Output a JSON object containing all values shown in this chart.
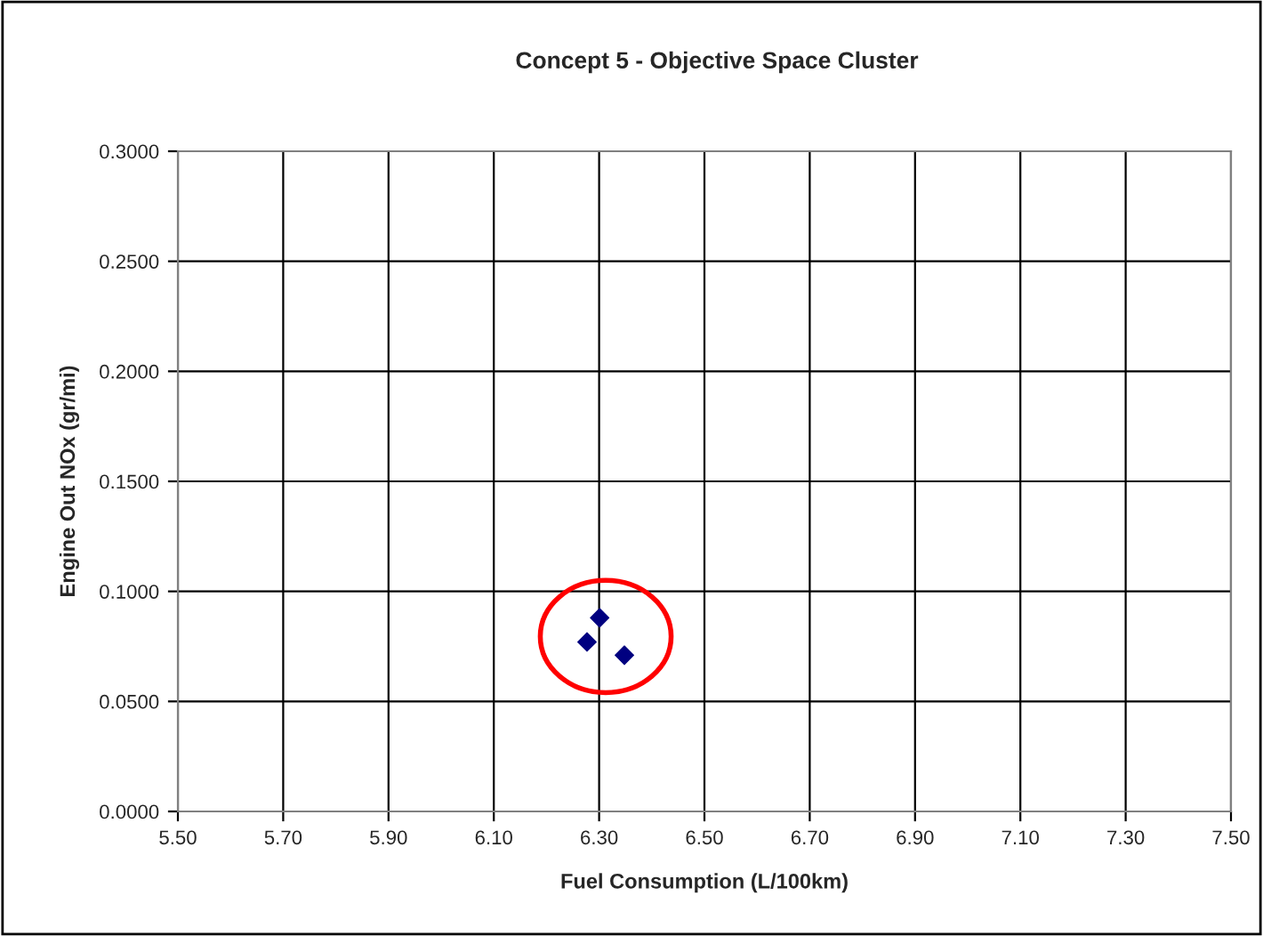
{
  "chart_data": {
    "type": "scatter",
    "title": "Concept 5 - Objective Space Cluster",
    "xlabel": "Fuel Consumption (L/100km)",
    "ylabel": "Engine Out NOx (gr/mi)",
    "x": [
      6.301,
      6.277,
      6.348
    ],
    "series": [
      {
        "color": "#000080",
        "values": [
          0.088,
          0.077,
          0.071
        ]
      }
    ],
    "marker": "diamond",
    "grid": true,
    "xlim": [
      5.5,
      7.5
    ],
    "xticks": [
      {
        "value": 5.5,
        "label": "5.50"
      },
      {
        "value": 5.7,
        "label": "5.70"
      },
      {
        "value": 5.9,
        "label": "5.90"
      },
      {
        "value": 6.1,
        "label": "6.10"
      },
      {
        "value": 6.3,
        "label": "6.30"
      },
      {
        "value": 6.5,
        "label": "6.50"
      },
      {
        "value": 6.7,
        "label": "6.70"
      },
      {
        "value": 6.9,
        "label": "6.90"
      },
      {
        "value": 7.1,
        "label": "7.10"
      },
      {
        "value": 7.3,
        "label": "7.30"
      },
      {
        "value": 7.5,
        "label": "7.50"
      }
    ],
    "ylim": [
      0,
      0.3
    ],
    "yticks": [
      {
        "value": 0,
        "label": "0.0000"
      },
      {
        "value": 0.05,
        "label": "0.0500"
      },
      {
        "value": 0.1,
        "label": "0.1000"
      },
      {
        "value": 0.15,
        "label": "0.1500"
      },
      {
        "value": 0.2,
        "label": "0.2000"
      },
      {
        "value": 0.25,
        "label": "0.2500"
      },
      {
        "value": 0.3,
        "label": "0.3000"
      }
    ]
  }
}
